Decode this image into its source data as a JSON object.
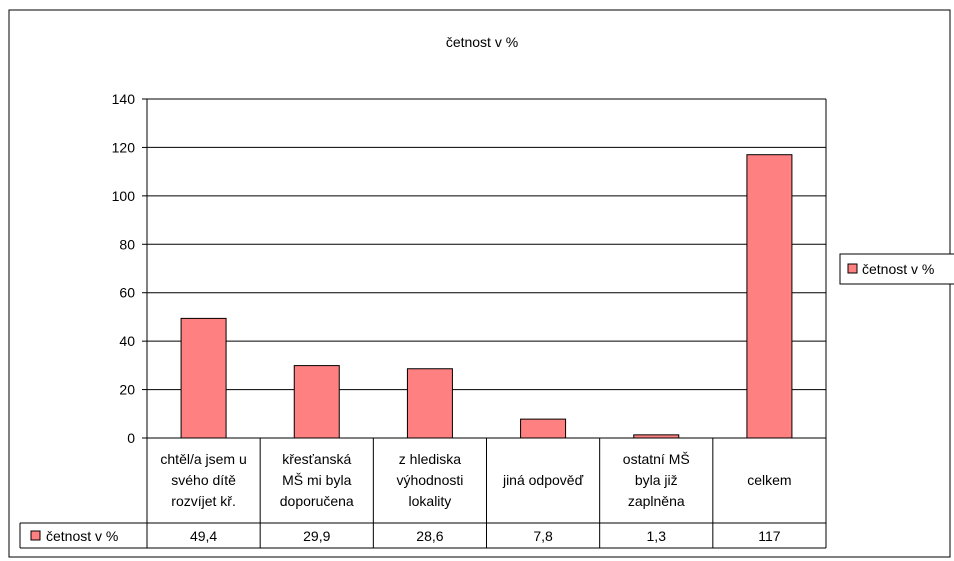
{
  "chart_data": {
    "type": "bar",
    "title": "četnost v %",
    "categories": [
      [
        "chtěl/a jsem u",
        "svého dítě",
        "rozvíjet kř."
      ],
      [
        "křesťanská",
        "MŠ mi byla",
        "doporučena"
      ],
      [
        "z hlediska",
        "výhodnosti",
        "lokality"
      ],
      [
        "jiná odpověď"
      ],
      [
        "ostatní MŠ",
        "byla již",
        "zaplněna"
      ],
      [
        "celkem"
      ]
    ],
    "series": [
      {
        "name": "četnost v %",
        "values": [
          49.4,
          29.9,
          28.6,
          7.8,
          1.3,
          117
        ],
        "labels": [
          "49,4",
          "29,9",
          "28,6",
          "7,8",
          "1,3",
          "117"
        ],
        "color": "#FF8080"
      }
    ],
    "ylim": [
      0,
      140
    ],
    "yticks": [
      "0",
      "20",
      "40",
      "60",
      "80",
      "100",
      "120",
      "140"
    ],
    "grid": true,
    "legend": "right",
    "data_table": true
  }
}
